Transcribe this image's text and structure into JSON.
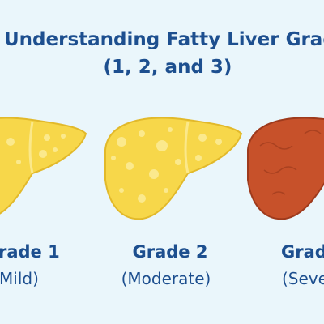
{
  "header": {
    "title_line1": "Understanding Fatty Liver Grade",
    "title_line2": "(1, 2, and 3)"
  },
  "grades": [
    {
      "label": "rade 1",
      "severity": "Mild)"
    },
    {
      "label": "Grade 2",
      "severity": "(Moderate)"
    },
    {
      "label": "Grad",
      "severity": "(Seve"
    }
  ]
}
